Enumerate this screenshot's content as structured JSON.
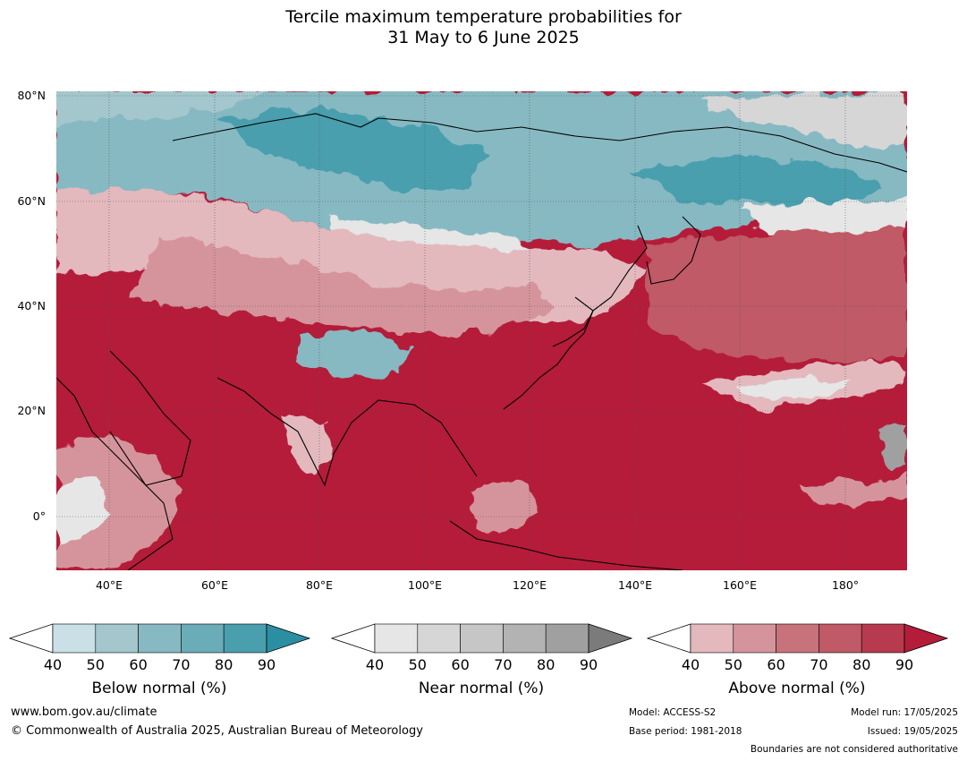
{
  "title": {
    "line1": "Tercile maximum temperature probabilities for",
    "line2": "31 May to 6 June 2025"
  },
  "map": {
    "lat_labels": [
      "80°N",
      "60°N",
      "40°N",
      "20°N",
      "0°"
    ],
    "lon_labels": [
      "40°E",
      "60°E",
      "80°E",
      "100°E",
      "120°E",
      "140°E",
      "160°E",
      "180°"
    ],
    "colors": {
      "below": [
        "#c8e0e6",
        "#a3c7cd",
        "#87b9c2",
        "#6aacb8",
        "#4a9fae",
        "#2a8fa3"
      ],
      "near": [
        "#e6e6e6",
        "#d6d6d6",
        "#c6c6c6",
        "#b3b3b3",
        "#a0a0a0",
        "#7b7b7b"
      ],
      "above": [
        "#e3b9be",
        "#d5949b",
        "#c8737c",
        "#bf5a66",
        "#b73a4e",
        "#b41c3a"
      ]
    }
  },
  "colorbars": [
    {
      "id": "below",
      "label": "Below normal (%)",
      "ticks": [
        "40",
        "50",
        "60",
        "70",
        "80",
        "90"
      ]
    },
    {
      "id": "near",
      "label": "Near normal (%)",
      "ticks": [
        "40",
        "50",
        "60",
        "70",
        "80",
        "90"
      ]
    },
    {
      "id": "above",
      "label": "Above normal (%)",
      "ticks": [
        "40",
        "50",
        "60",
        "70",
        "80",
        "90"
      ]
    }
  ],
  "footer": {
    "website": "www.bom.gov.au/climate",
    "copyright": "© Commonwealth of Australia 2025, Australian Bureau of Meteorology",
    "model": "Model: ACCESS-S2",
    "base_period": "Base period: 1981-2018",
    "model_run": "Model run: 17/05/2025",
    "issued": "Issued: 19/05/2025",
    "disclaimer": "Boundaries are not considered authoritative"
  }
}
